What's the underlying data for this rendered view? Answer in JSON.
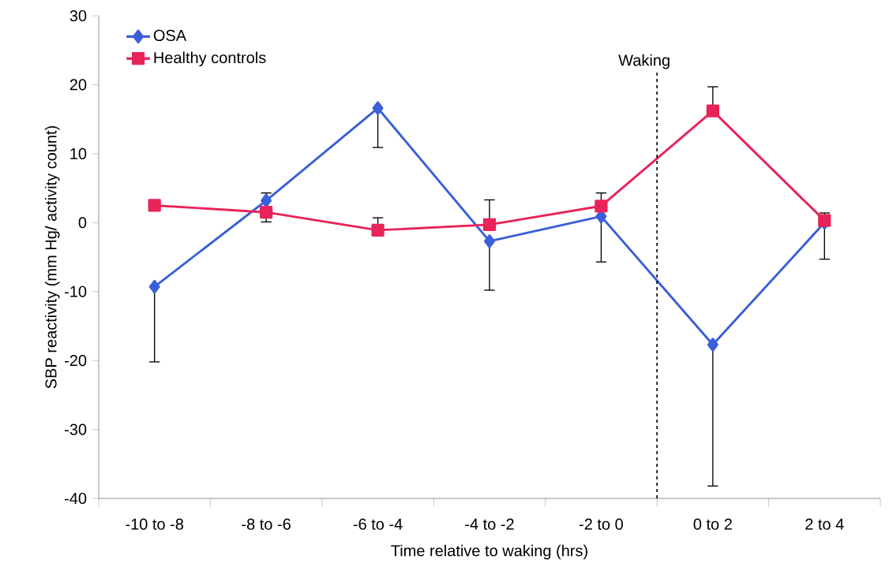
{
  "chart_data": {
    "type": "line",
    "xlabel": "Time relative to waking (hrs)",
    "ylabel": "SBP reactivity (mm Hg/ activity count)",
    "categories": [
      "-10 to -8",
      "-8 to -6",
      "-6 to -4",
      "-4 to -2",
      "-2 to 0",
      "0 to 2",
      "2 to 4"
    ],
    "series": [
      {
        "name": "OSA",
        "color": "#3a5fd8",
        "marker": "diamond",
        "values": [
          -9.3,
          3.2,
          16.6,
          -2.7,
          0.9,
          -17.7,
          0.0
        ],
        "errors": [
          [
            -20.2,
            -9.3
          ],
          [
            3.2,
            4.3
          ],
          [
            10.9,
            16.6
          ],
          [
            -9.8,
            -2.7
          ],
          [
            -5.7,
            0.9
          ],
          [
            -38.2,
            -17.7
          ],
          [
            -5.3,
            0.0
          ]
        ]
      },
      {
        "name": "Healthy controls",
        "color": "#e8245a",
        "marker": "square",
        "values": [
          2.5,
          1.5,
          -1.1,
          -0.3,
          2.4,
          16.2,
          0.3
        ],
        "errors": [
          null,
          [
            0.1,
            1.5
          ],
          [
            -1.1,
            0.7
          ],
          [
            -0.3,
            3.3
          ],
          [
            2.4,
            4.3
          ],
          [
            16.2,
            19.7
          ],
          [
            0.3,
            1.4
          ]
        ]
      }
    ],
    "ylim": [
      -40,
      30
    ],
    "yticks": [
      -40,
      -30,
      -20,
      -10,
      0,
      10,
      20,
      30
    ],
    "annotations": [
      "Waking"
    ],
    "legend": "top left",
    "line_style": "solid"
  }
}
